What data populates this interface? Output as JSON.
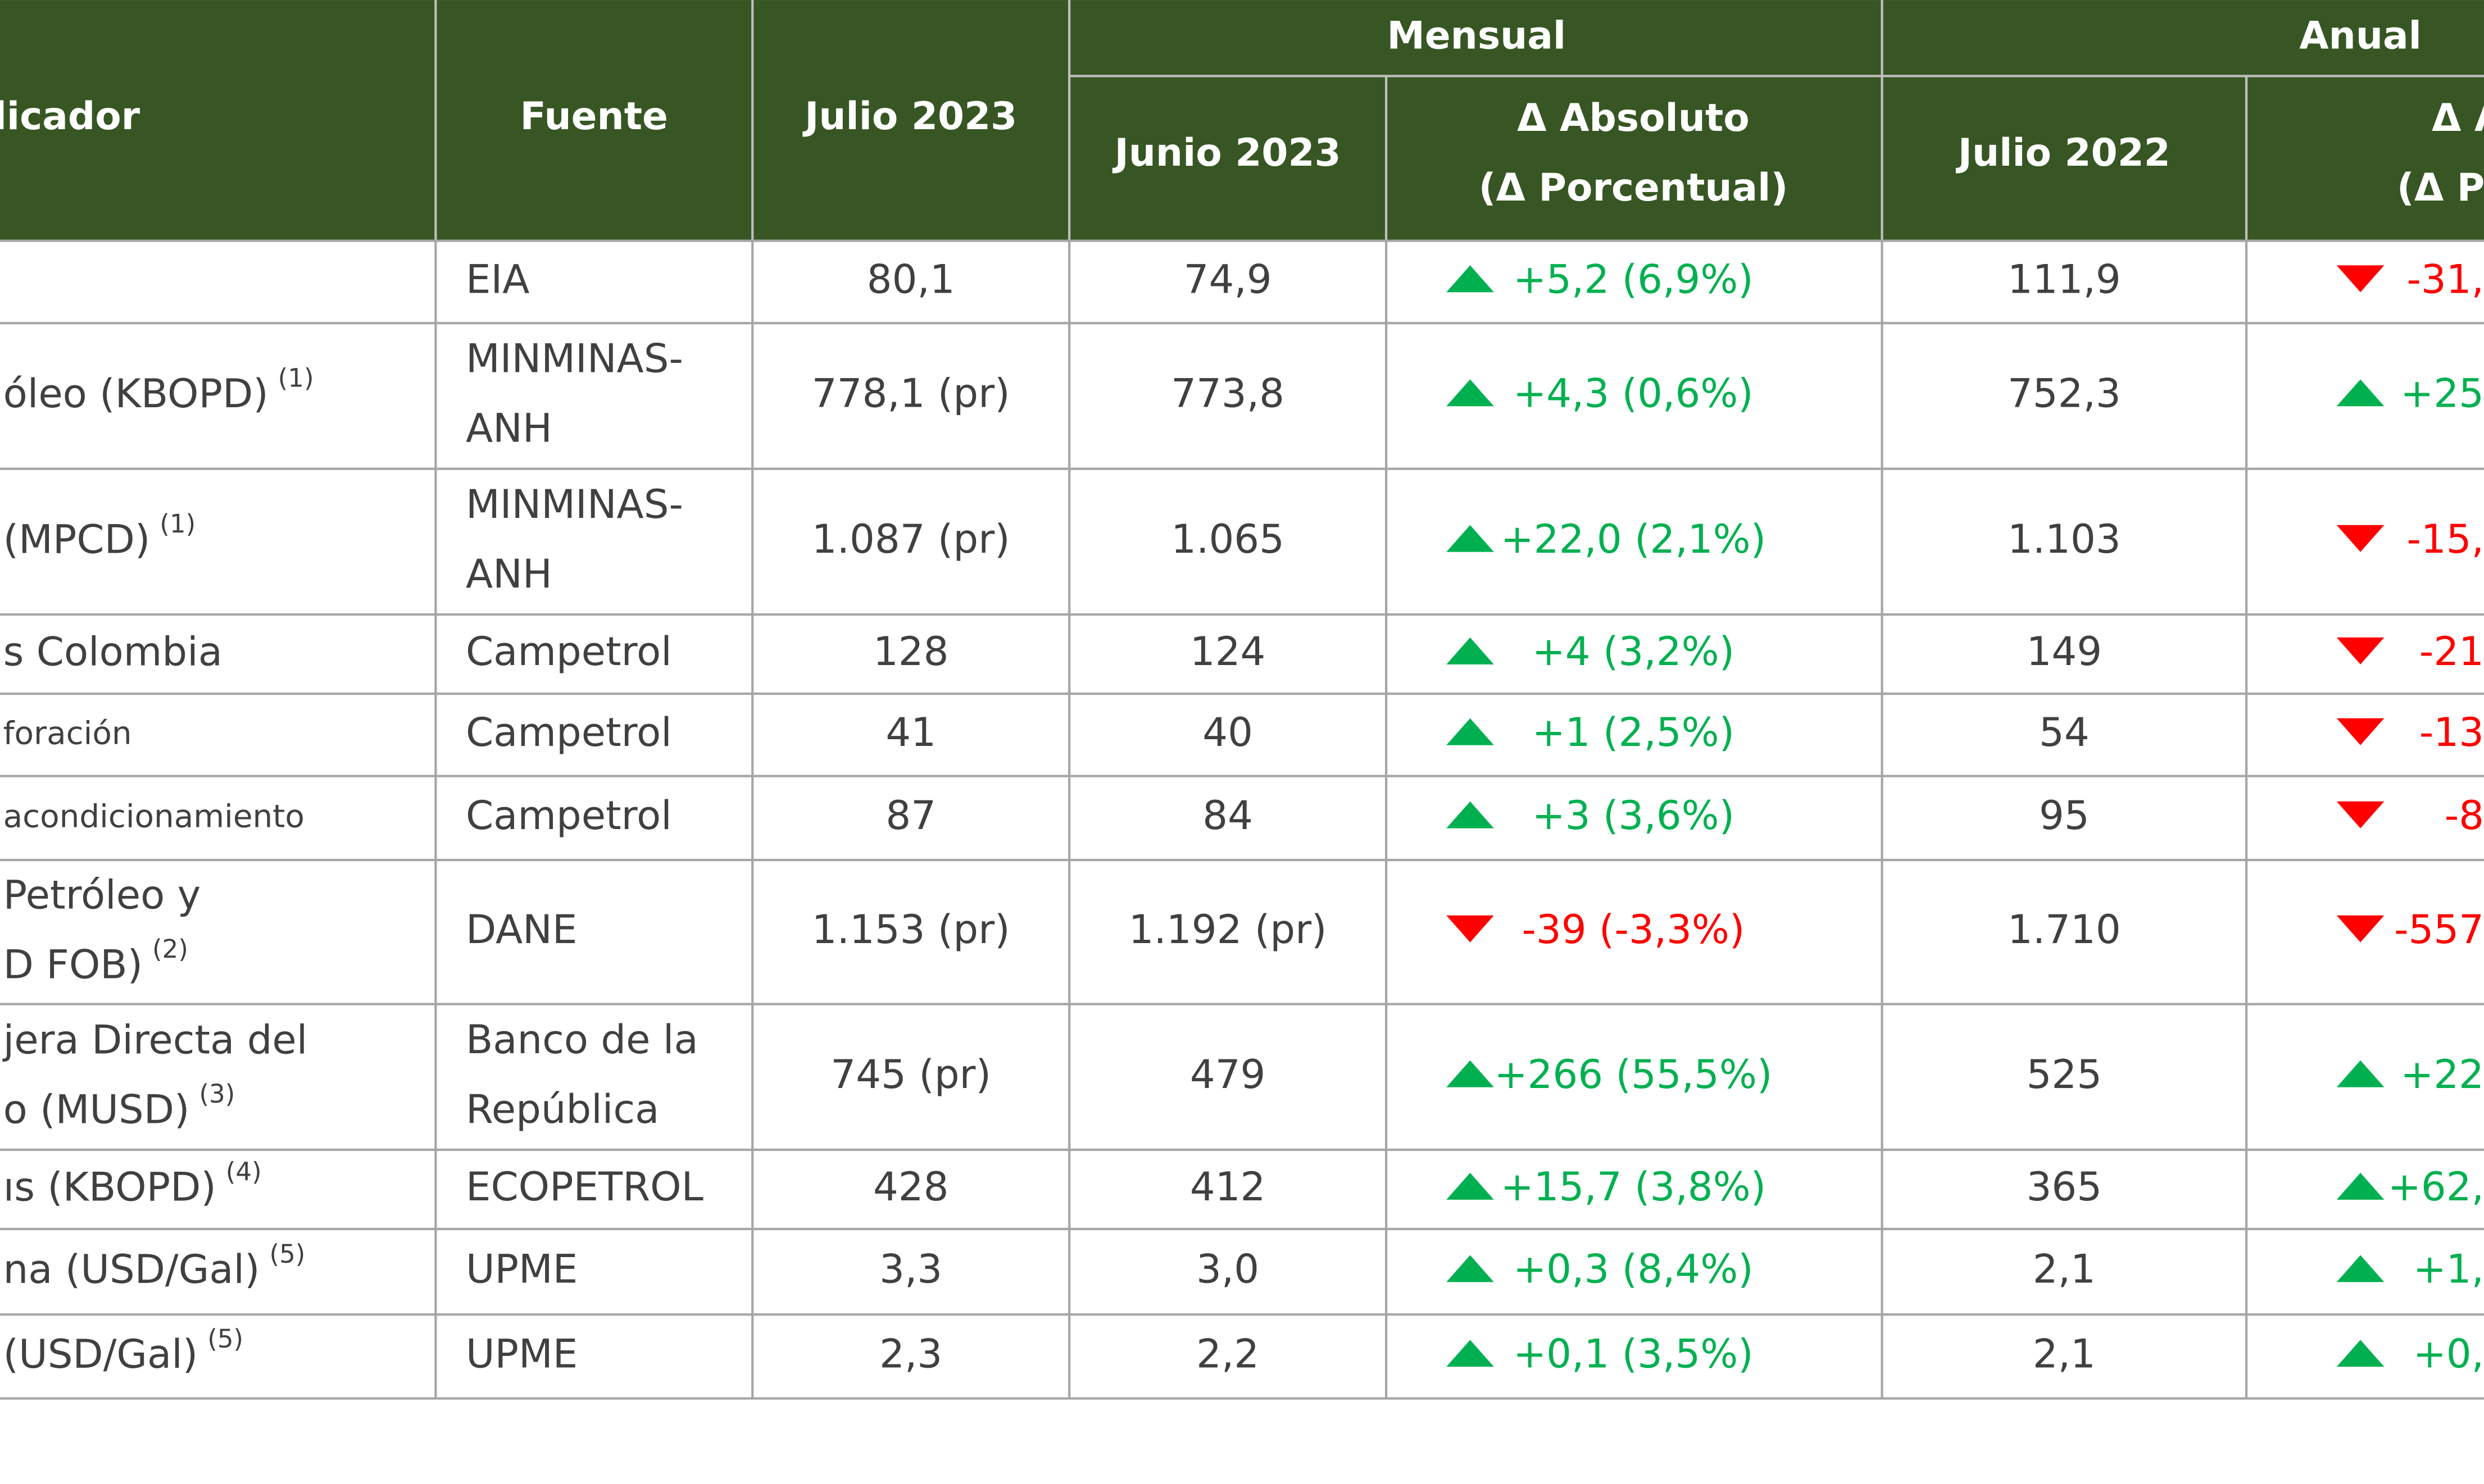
{
  "header": {
    "indicator": "licador",
    "source": "Fuente",
    "current": "Julio 2023",
    "monthly_group": "Mensual",
    "annual_group": "Anual",
    "prev_month": "Junio 2023",
    "delta_month": [
      "Δ Absoluto",
      "(Δ Porcentual)"
    ],
    "prev_year": "Julio 2022",
    "delta_year": [
      "Δ A",
      "(Δ Pe"
    ]
  },
  "rows": [
    {
      "indicator": [],
      "source": [
        "EIA"
      ],
      "current": "80,1",
      "prev_month": "74,9",
      "delta_month": {
        "trend": "up",
        "text": "+5,2 (6,9%)"
      },
      "prev_year": "111,9",
      "delta_year": {
        "trend": "down",
        "text": "-31,"
      }
    },
    {
      "indicator": [
        "óleo (KBOPD)"
      ],
      "note": "(1)",
      "source": [
        "MINMINAS-",
        "ANH"
      ],
      "current": "778,1 (pr)",
      "prev_month": "773,8",
      "delta_month": {
        "trend": "up",
        "text": "+4,3 (0,6%)"
      },
      "prev_year": "752,3",
      "delta_year": {
        "trend": "up",
        "text": "+25"
      }
    },
    {
      "indicator": [
        "(MPCD)"
      ],
      "note": "(1)",
      "source": [
        "MINMINAS-",
        "ANH"
      ],
      "current": "1.087 (pr)",
      "prev_month": "1.065",
      "delta_month": {
        "trend": "up",
        "text": "+22,0 (2,1%)"
      },
      "prev_year": "1.103",
      "delta_year": {
        "trend": "down",
        "text": "-15,"
      }
    },
    {
      "indicator": [
        "s Colombia"
      ],
      "source": [
        "Campetrol"
      ],
      "current": "128",
      "prev_month": "124",
      "delta_month": {
        "trend": "up",
        "text": "+4 (3,2%)"
      },
      "prev_year": "149",
      "delta_year": {
        "trend": "down",
        "text": "-21"
      }
    },
    {
      "indicator": [
        "foración"
      ],
      "small": true,
      "source": [
        "Campetrol"
      ],
      "current": "41",
      "prev_month": "40",
      "delta_month": {
        "trend": "up",
        "text": "+1 (2,5%)"
      },
      "prev_year": "54",
      "delta_year": {
        "trend": "down",
        "text": "-13"
      }
    },
    {
      "indicator": [
        "acondicionamiento"
      ],
      "small": true,
      "source": [
        "Campetrol"
      ],
      "current": "87",
      "prev_month": "84",
      "delta_month": {
        "trend": "up",
        "text": "+3 (3,6%)"
      },
      "prev_year": "95",
      "delta_year": {
        "trend": "down",
        "text": "-8"
      }
    },
    {
      "indicator": [
        "Petróleo y",
        "D FOB)"
      ],
      "note": "(2)",
      "source": [
        "DANE"
      ],
      "current": "1.153 (pr)",
      "prev_month": "1.192 (pr)",
      "delta_month": {
        "trend": "down",
        "text": "-39 (-3,3%)"
      },
      "prev_year": "1.710",
      "delta_year": {
        "trend": "down",
        "text": "-557"
      }
    },
    {
      "indicator": [
        "jera Directa del",
        "o (MUSD)"
      ],
      "note": "(3)",
      "source": [
        "Banco de la",
        "República"
      ],
      "current": "745 (pr)",
      "prev_month": "479",
      "delta_month": {
        "trend": "up",
        "text": "+266 (55,5%)"
      },
      "prev_year": "525",
      "delta_year": {
        "trend": "up",
        "text": "+22"
      }
    },
    {
      "indicator": [
        "ıs (KBOPD)"
      ],
      "note": "(4)",
      "source": [
        "ECOPETROL"
      ],
      "current": "428",
      "prev_month": "412",
      "delta_month": {
        "trend": "up",
        "text": "+15,7 (3,8%)"
      },
      "prev_year": "365",
      "delta_year": {
        "trend": "up",
        "text": "+62,"
      }
    },
    {
      "indicator": [
        "na (USD/Gal)"
      ],
      "note": "(5)",
      "source": [
        "UPME"
      ],
      "current": "3,3",
      "prev_month": "3,0",
      "delta_month": {
        "trend": "up",
        "text": "+0,3 (8,4%)"
      },
      "prev_year": "2,1",
      "delta_year": {
        "trend": "up",
        "text": "+1,"
      }
    },
    {
      "indicator": [
        "(USD/Gal)"
      ],
      "note": "(5)",
      "source": [
        "UPME"
      ],
      "current": "2,3",
      "prev_month": "2,2",
      "delta_month": {
        "trend": "up",
        "text": "+0,1 (3,5%)"
      },
      "prev_year": "2,1",
      "delta_year": {
        "trend": "up",
        "text": "+0,"
      }
    }
  ]
}
